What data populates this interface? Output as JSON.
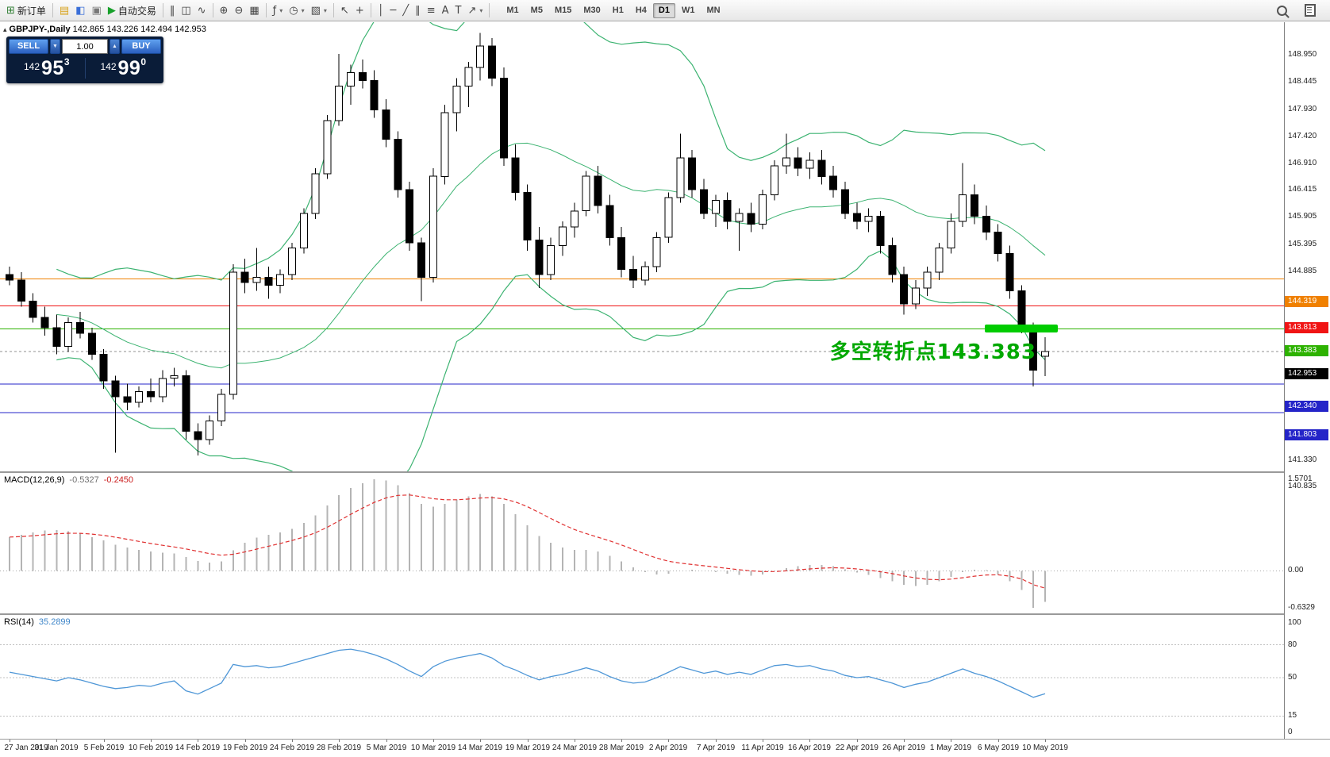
{
  "toolbar": {
    "caret_glyph": "▾",
    "buttons_left": [
      {
        "name": "new-order-button",
        "icon": "new-order-icon",
        "glyph": "⊞",
        "color": "#2e7d32",
        "label": "新订单"
      },
      {
        "sep": true
      },
      {
        "name": "market-watch-button",
        "icon": "market-watch-icon",
        "glyph": "▤",
        "color": "#d8a21a"
      },
      {
        "name": "navigator-button",
        "icon": "navigator-icon",
        "glyph": "◧",
        "color": "#3a6fd8"
      },
      {
        "name": "terminal-button",
        "icon": "terminal-icon",
        "glyph": "▣",
        "color": "#777777"
      },
      {
        "name": "auto-trading-button",
        "icon": "auto-trading-play-icon",
        "glyph": "▶",
        "color": "#17a02a",
        "label": "自动交易"
      },
      {
        "sep": true
      },
      {
        "name": "bar-chart-button",
        "icon": "bar-chart-icon",
        "glyph": "‖"
      },
      {
        "name": "candlestick-chart-button",
        "icon": "candlestick-icon",
        "glyph": "◫"
      },
      {
        "name": "line-chart-button",
        "icon": "line-chart-icon",
        "glyph": "∿"
      },
      {
        "sep": true
      },
      {
        "name": "zoom-in-button",
        "icon": "zoom-in-icon",
        "glyph": "⊕"
      },
      {
        "name": "zoom-out-button",
        "icon": "zoom-out-icon",
        "glyph": "⊖"
      },
      {
        "name": "tile-windows-button",
        "icon": "tile-windows-icon",
        "glyph": "▦"
      },
      {
        "sep": true
      },
      {
        "name": "indicators-button",
        "icon": "indicators-icon",
        "glyph": "ƒ",
        "caret": true
      },
      {
        "name": "periods-button",
        "icon": "clock-icon",
        "glyph": "◷",
        "caret": true
      },
      {
        "name": "templates-button",
        "icon": "template-icon",
        "glyph": "▧",
        "caret": true
      },
      {
        "sep": true
      },
      {
        "name": "cursor-button",
        "icon": "cursor-icon",
        "glyph": "↖"
      },
      {
        "name": "crosshair-button",
        "icon": "crosshair-icon",
        "glyph": "+"
      },
      {
        "sep": true
      },
      {
        "name": "vertical-line-button",
        "icon": "vertical-line-icon",
        "glyph": "│"
      },
      {
        "name": "horizontal-line-button",
        "icon": "horizontal-line-icon",
        "glyph": "─"
      },
      {
        "name": "trendline-button",
        "icon": "trendline-icon",
        "glyph": "╱"
      },
      {
        "name": "channel-button",
        "icon": "channel-icon",
        "glyph": "∥"
      },
      {
        "name": "fibonacci-button",
        "icon": "fibonacci-icon",
        "glyph": "≡"
      },
      {
        "name": "text-button",
        "icon": "text-icon",
        "glyph": "A"
      },
      {
        "name": "text-label-button",
        "icon": "text-label-icon",
        "glyph": "T"
      },
      {
        "name": "arrows-button",
        "icon": "arrow-icon",
        "glyph": "↗",
        "caret": true
      },
      {
        "sep": true
      }
    ],
    "timeframes": [
      {
        "label": "M1"
      },
      {
        "label": "M5"
      },
      {
        "label": "M15"
      },
      {
        "label": "M30"
      },
      {
        "label": "H1"
      },
      {
        "label": "H4"
      },
      {
        "label": "D1",
        "active": true
      },
      {
        "label": "W1"
      },
      {
        "label": "MN"
      }
    ],
    "right_buttons": [
      {
        "name": "search-button",
        "icon": "search-icon",
        "css": "mag"
      },
      {
        "name": "data-window-button",
        "icon": "data-window-icon",
        "css": "doc"
      }
    ]
  },
  "symbol_bar": {
    "collapse_glyph": "▴",
    "symbol": "GBPJPY-,Daily",
    "ohlc": "142.865 143.226 142.494 142.953"
  },
  "one_click": {
    "sell_label": "SELL",
    "buy_label": "BUY",
    "volume": "1.00",
    "spin_down_glyph": "▼",
    "spin_up_glyph": "▲",
    "sell": {
      "prefix": "142",
      "pips": "95",
      "pt": "3"
    },
    "buy": {
      "prefix": "142",
      "pips": "99",
      "pt": "0"
    }
  },
  "price_axis": {
    "max": 149.15,
    "min": 140.7,
    "ticks": [
      {
        "label": "148.950",
        "value": 148.95
      },
      {
        "label": "148.445",
        "value": 148.445
      },
      {
        "label": "147.930",
        "value": 147.93
      },
      {
        "label": "147.420",
        "value": 147.42
      },
      {
        "label": "146.910",
        "value": 146.91
      },
      {
        "label": "146.415",
        "value": 146.415
      },
      {
        "label": "145.905",
        "value": 145.905
      },
      {
        "label": "145.395",
        "value": 145.395
      },
      {
        "label": "144.885",
        "value": 144.885
      },
      {
        "label": "141.330",
        "value": 141.33
      },
      {
        "label": "140.835",
        "value": 140.835
      }
    ]
  },
  "markers": [
    {
      "label": "144.319",
      "value": 144.319,
      "color": "#f08000",
      "style": "solid"
    },
    {
      "label": "143.813",
      "value": 143.813,
      "color": "#f01414",
      "style": "solid"
    },
    {
      "label": "143.383",
      "value": 143.383,
      "color": "#2db200",
      "style": "solid"
    },
    {
      "label": "142.953",
      "value": 142.953,
      "color": "#000000",
      "line_color": "#909090",
      "style": "dashed",
      "current": true
    },
    {
      "label": "142.340",
      "value": 142.34,
      "color": "#2424c8",
      "style": "solid"
    },
    {
      "label": "141.803",
      "value": 141.803,
      "color": "#2424c8",
      "style": "solid"
    }
  ],
  "annotations": {
    "turning_point_text": {
      "text": "多空转折点143.383",
      "color": "#00a800"
    },
    "highlight_box": {
      "price": 143.383,
      "color": "#00cc00"
    }
  },
  "colors": {
    "bull": "#ffffff",
    "bear": "#000000",
    "wick": "#000000",
    "bollinger": "#3cb371",
    "macd_histogram": "#b4b4b4",
    "macd_signal": "#e03030",
    "rsi_line": "#4f97d7",
    "level_silver": "#c0c0c0"
  },
  "chart_data": {
    "type": "candlestick",
    "symbol": "GBPJPY-",
    "period": "Daily",
    "x_label_step": 4,
    "x_labels": [
      "27 Jan 2019",
      "31 Jan 2019",
      "5 Feb 2019",
      "10 Feb 2019",
      "14 Feb 2019",
      "19 Feb 2019",
      "24 Feb 2019",
      "28 Feb 2019",
      "5 Mar 2019",
      "10 Mar 2019",
      "14 Mar 2019",
      "19 Mar 2019",
      "24 Mar 2019",
      "28 Mar 2019",
      "2 Apr 2019",
      "7 Apr 2019",
      "11 Apr 2019",
      "16 Apr 2019",
      "22 Apr 2019",
      "26 Apr 2019",
      "1 May 2019",
      "6 May 2019",
      "10 May 2019"
    ],
    "candles": [
      [
        144.4,
        144.55,
        144.2,
        144.3
      ],
      [
        144.3,
        144.45,
        143.8,
        143.9
      ],
      [
        143.9,
        144.05,
        143.5,
        143.6
      ],
      [
        143.6,
        143.8,
        143.25,
        143.4
      ],
      [
        143.4,
        143.65,
        142.9,
        143.05
      ],
      [
        143.05,
        143.6,
        142.95,
        143.5
      ],
      [
        143.5,
        143.7,
        143.2,
        143.3
      ],
      [
        143.3,
        143.4,
        142.8,
        142.9
      ],
      [
        142.9,
        143.0,
        142.25,
        142.4
      ],
      [
        142.4,
        142.5,
        141.05,
        142.1
      ],
      [
        142.1,
        142.35,
        141.85,
        142.0
      ],
      [
        142.0,
        142.3,
        141.9,
        142.2
      ],
      [
        142.2,
        142.45,
        142.0,
        142.1
      ],
      [
        142.1,
        142.6,
        142.0,
        142.45
      ],
      [
        142.45,
        142.65,
        142.3,
        142.5
      ],
      [
        142.5,
        142.6,
        141.3,
        141.45
      ],
      [
        141.45,
        141.6,
        141.0,
        141.3
      ],
      [
        141.3,
        141.75,
        141.2,
        141.65
      ],
      [
        141.65,
        142.25,
        141.55,
        142.15
      ],
      [
        142.15,
        144.6,
        142.05,
        144.45
      ],
      [
        144.45,
        144.7,
        144.05,
        144.25
      ],
      [
        144.25,
        144.9,
        144.1,
        144.35
      ],
      [
        144.35,
        144.55,
        143.95,
        144.2
      ],
      [
        144.2,
        144.5,
        144.05,
        144.4
      ],
      [
        144.4,
        145.0,
        144.3,
        144.9
      ],
      [
        144.9,
        145.65,
        144.8,
        145.55
      ],
      [
        145.55,
        146.4,
        145.45,
        146.3
      ],
      [
        146.3,
        147.4,
        146.2,
        147.3
      ],
      [
        147.3,
        148.55,
        147.2,
        147.95
      ],
      [
        147.95,
        148.35,
        147.6,
        148.2
      ],
      [
        148.2,
        148.45,
        147.9,
        148.05
      ],
      [
        148.05,
        148.25,
        147.35,
        147.5
      ],
      [
        147.5,
        147.7,
        146.8,
        146.95
      ],
      [
        146.95,
        147.1,
        145.85,
        146.0
      ],
      [
        146.0,
        146.15,
        144.85,
        145.0
      ],
      [
        145.0,
        145.1,
        143.9,
        144.35
      ],
      [
        144.35,
        146.4,
        144.25,
        146.25
      ],
      [
        146.25,
        147.6,
        146.1,
        147.45
      ],
      [
        147.45,
        148.1,
        147.1,
        147.95
      ],
      [
        147.95,
        148.4,
        147.55,
        148.3
      ],
      [
        148.3,
        148.95,
        148.05,
        148.7
      ],
      [
        148.7,
        148.85,
        147.95,
        148.1
      ],
      [
        148.1,
        148.3,
        146.45,
        146.6
      ],
      [
        146.6,
        146.85,
        145.8,
        145.95
      ],
      [
        145.95,
        146.1,
        144.85,
        145.05
      ],
      [
        145.05,
        145.3,
        144.15,
        144.4
      ],
      [
        144.4,
        145.1,
        144.3,
        144.95
      ],
      [
        144.95,
        145.4,
        144.75,
        145.3
      ],
      [
        145.3,
        145.75,
        145.1,
        145.6
      ],
      [
        145.6,
        146.35,
        145.5,
        146.25
      ],
      [
        146.25,
        146.45,
        145.55,
        145.7
      ],
      [
        145.7,
        145.9,
        144.95,
        145.1
      ],
      [
        145.1,
        145.3,
        144.35,
        144.5
      ],
      [
        144.5,
        144.75,
        144.15,
        144.3
      ],
      [
        144.3,
        144.65,
        144.2,
        144.55
      ],
      [
        144.55,
        145.2,
        144.45,
        145.1
      ],
      [
        145.1,
        145.95,
        145.0,
        145.85
      ],
      [
        145.85,
        147.05,
        145.75,
        146.6
      ],
      [
        146.6,
        146.75,
        145.85,
        146.0
      ],
      [
        146.0,
        146.2,
        145.45,
        145.55
      ],
      [
        145.55,
        145.9,
        145.3,
        145.8
      ],
      [
        145.8,
        145.95,
        145.25,
        145.4
      ],
      [
        145.4,
        145.65,
        144.85,
        145.55
      ],
      [
        145.55,
        145.75,
        145.2,
        145.35
      ],
      [
        145.35,
        146.0,
        145.25,
        145.9
      ],
      [
        145.9,
        146.55,
        145.8,
        146.45
      ],
      [
        146.45,
        147.05,
        146.3,
        146.6
      ],
      [
        146.6,
        146.8,
        146.25,
        146.4
      ],
      [
        146.4,
        146.7,
        146.2,
        146.55
      ],
      [
        146.55,
        146.75,
        146.1,
        146.25
      ],
      [
        146.25,
        146.45,
        145.85,
        146.0
      ],
      [
        146.0,
        146.15,
        145.45,
        145.55
      ],
      [
        145.55,
        145.75,
        145.25,
        145.4
      ],
      [
        145.4,
        145.65,
        145.2,
        145.5
      ],
      [
        145.5,
        145.6,
        144.8,
        144.95
      ],
      [
        144.95,
        145.1,
        144.25,
        144.4
      ],
      [
        144.4,
        144.55,
        143.65,
        143.85
      ],
      [
        143.85,
        144.3,
        143.75,
        144.15
      ],
      [
        144.15,
        144.55,
        144.0,
        144.45
      ],
      [
        144.45,
        145.0,
        144.3,
        144.9
      ],
      [
        144.9,
        145.55,
        144.8,
        145.4
      ],
      [
        145.4,
        146.5,
        145.3,
        145.9
      ],
      [
        145.9,
        146.1,
        145.35,
        145.5
      ],
      [
        145.5,
        145.7,
        145.05,
        145.2
      ],
      [
        145.2,
        145.35,
        144.65,
        144.8
      ],
      [
        144.8,
        144.95,
        143.95,
        144.1
      ],
      [
        144.1,
        144.2,
        143.3,
        143.45
      ],
      [
        143.45,
        143.5,
        142.3,
        142.6
      ],
      [
        142.865,
        143.226,
        142.494,
        142.953
      ]
    ],
    "bollinger": {
      "period": 20,
      "deviation": 2
    },
    "indicators": [
      {
        "name_label": "MACD(12,26,9)",
        "main_value": "-0.5327",
        "signal_value": "-0.2450",
        "signal_period": 9,
        "axis": {
          "max": 1.5701,
          "min": -0.6329,
          "ticks": [
            {
              "label": "1.5701",
              "value": 1.5701
            },
            {
              "label": "0.00",
              "value": 0
            },
            {
              "label": "-0.6329",
              "value": -0.6329
            }
          ]
        },
        "main": [
          0.58,
          0.62,
          0.66,
          0.69,
          0.7,
          0.68,
          0.64,
          0.58,
          0.52,
          0.45,
          0.4,
          0.36,
          0.33,
          0.31,
          0.3,
          0.24,
          0.17,
          0.14,
          0.16,
          0.35,
          0.48,
          0.57,
          0.62,
          0.66,
          0.72,
          0.82,
          0.95,
          1.12,
          1.3,
          1.42,
          1.5,
          1.5701,
          1.55,
          1.47,
          1.33,
          1.15,
          1.1,
          1.15,
          1.22,
          1.28,
          1.32,
          1.28,
          1.15,
          0.97,
          0.78,
          0.6,
          0.48,
          0.4,
          0.36,
          0.36,
          0.33,
          0.26,
          0.16,
          0.06,
          -0.02,
          -0.06,
          -0.05,
          0.0,
          0.02,
          0.0,
          -0.02,
          -0.05,
          -0.07,
          -0.08,
          -0.06,
          -0.01,
          0.05,
          0.08,
          0.1,
          0.1,
          0.08,
          0.03,
          -0.03,
          -0.07,
          -0.12,
          -0.18,
          -0.24,
          -0.26,
          -0.24,
          -0.18,
          -0.1,
          -0.02,
          0.02,
          0.01,
          -0.06,
          -0.18,
          -0.33,
          -0.6329,
          -0.5327
        ]
      },
      {
        "name_label": "RSI(14)",
        "value": "35.2899",
        "levels": [
          80,
          50,
          15
        ],
        "axis_ticks": [
          {
            "label": "100",
            "value": 100
          },
          {
            "label": "80",
            "value": 80
          },
          {
            "label": "50",
            "value": 50
          },
          {
            "label": "15",
            "value": 15
          },
          {
            "label": "0",
            "value": 0
          }
        ],
        "values": [
          55,
          53,
          51,
          49,
          47,
          50,
          48,
          45,
          42,
          40,
          41,
          43,
          42,
          45,
          47,
          38,
          35,
          40,
          45,
          62,
          60,
          61,
          59,
          60,
          63,
          66,
          69,
          72,
          75,
          76,
          74,
          71,
          67,
          62,
          56,
          51,
          60,
          65,
          68,
          70,
          72,
          68,
          61,
          57,
          52,
          48,
          51,
          53,
          56,
          59,
          56,
          51,
          47,
          45,
          46,
          50,
          55,
          60,
          57,
          54,
          56,
          53,
          55,
          53,
          57,
          61,
          62,
          60,
          61,
          58,
          56,
          52,
          50,
          51,
          48,
          45,
          41,
          44,
          46,
          50,
          54,
          58,
          54,
          51,
          47,
          42,
          37,
          32,
          35.2899
        ]
      }
    ]
  }
}
